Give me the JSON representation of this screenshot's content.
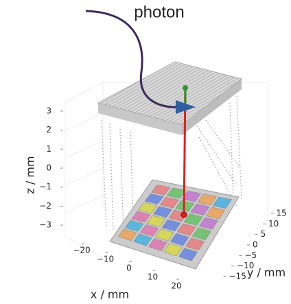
{
  "annotation": "photon",
  "axes": {
    "x": {
      "label": "x / mm",
      "ticks": [
        {
          "value": -20,
          "label": "−20"
        },
        {
          "value": -10,
          "label": "−10"
        },
        0,
        10,
        20
      ]
    },
    "y": {
      "label": "y / mm",
      "ticks": [
        15,
        10,
        5,
        0,
        {
          "value": -5,
          "label": "−5"
        },
        {
          "value": -10,
          "label": "−10"
        },
        {
          "value": -15,
          "label": "−15"
        }
      ]
    },
    "z": {
      "label": "z / mm",
      "ticks": [
        3,
        2,
        1,
        0,
        {
          "value": -1,
          "label": "−1"
        },
        {
          "value": -2,
          "label": "−2"
        },
        {
          "value": -3,
          "label": "−3"
        }
      ]
    }
  }
}
